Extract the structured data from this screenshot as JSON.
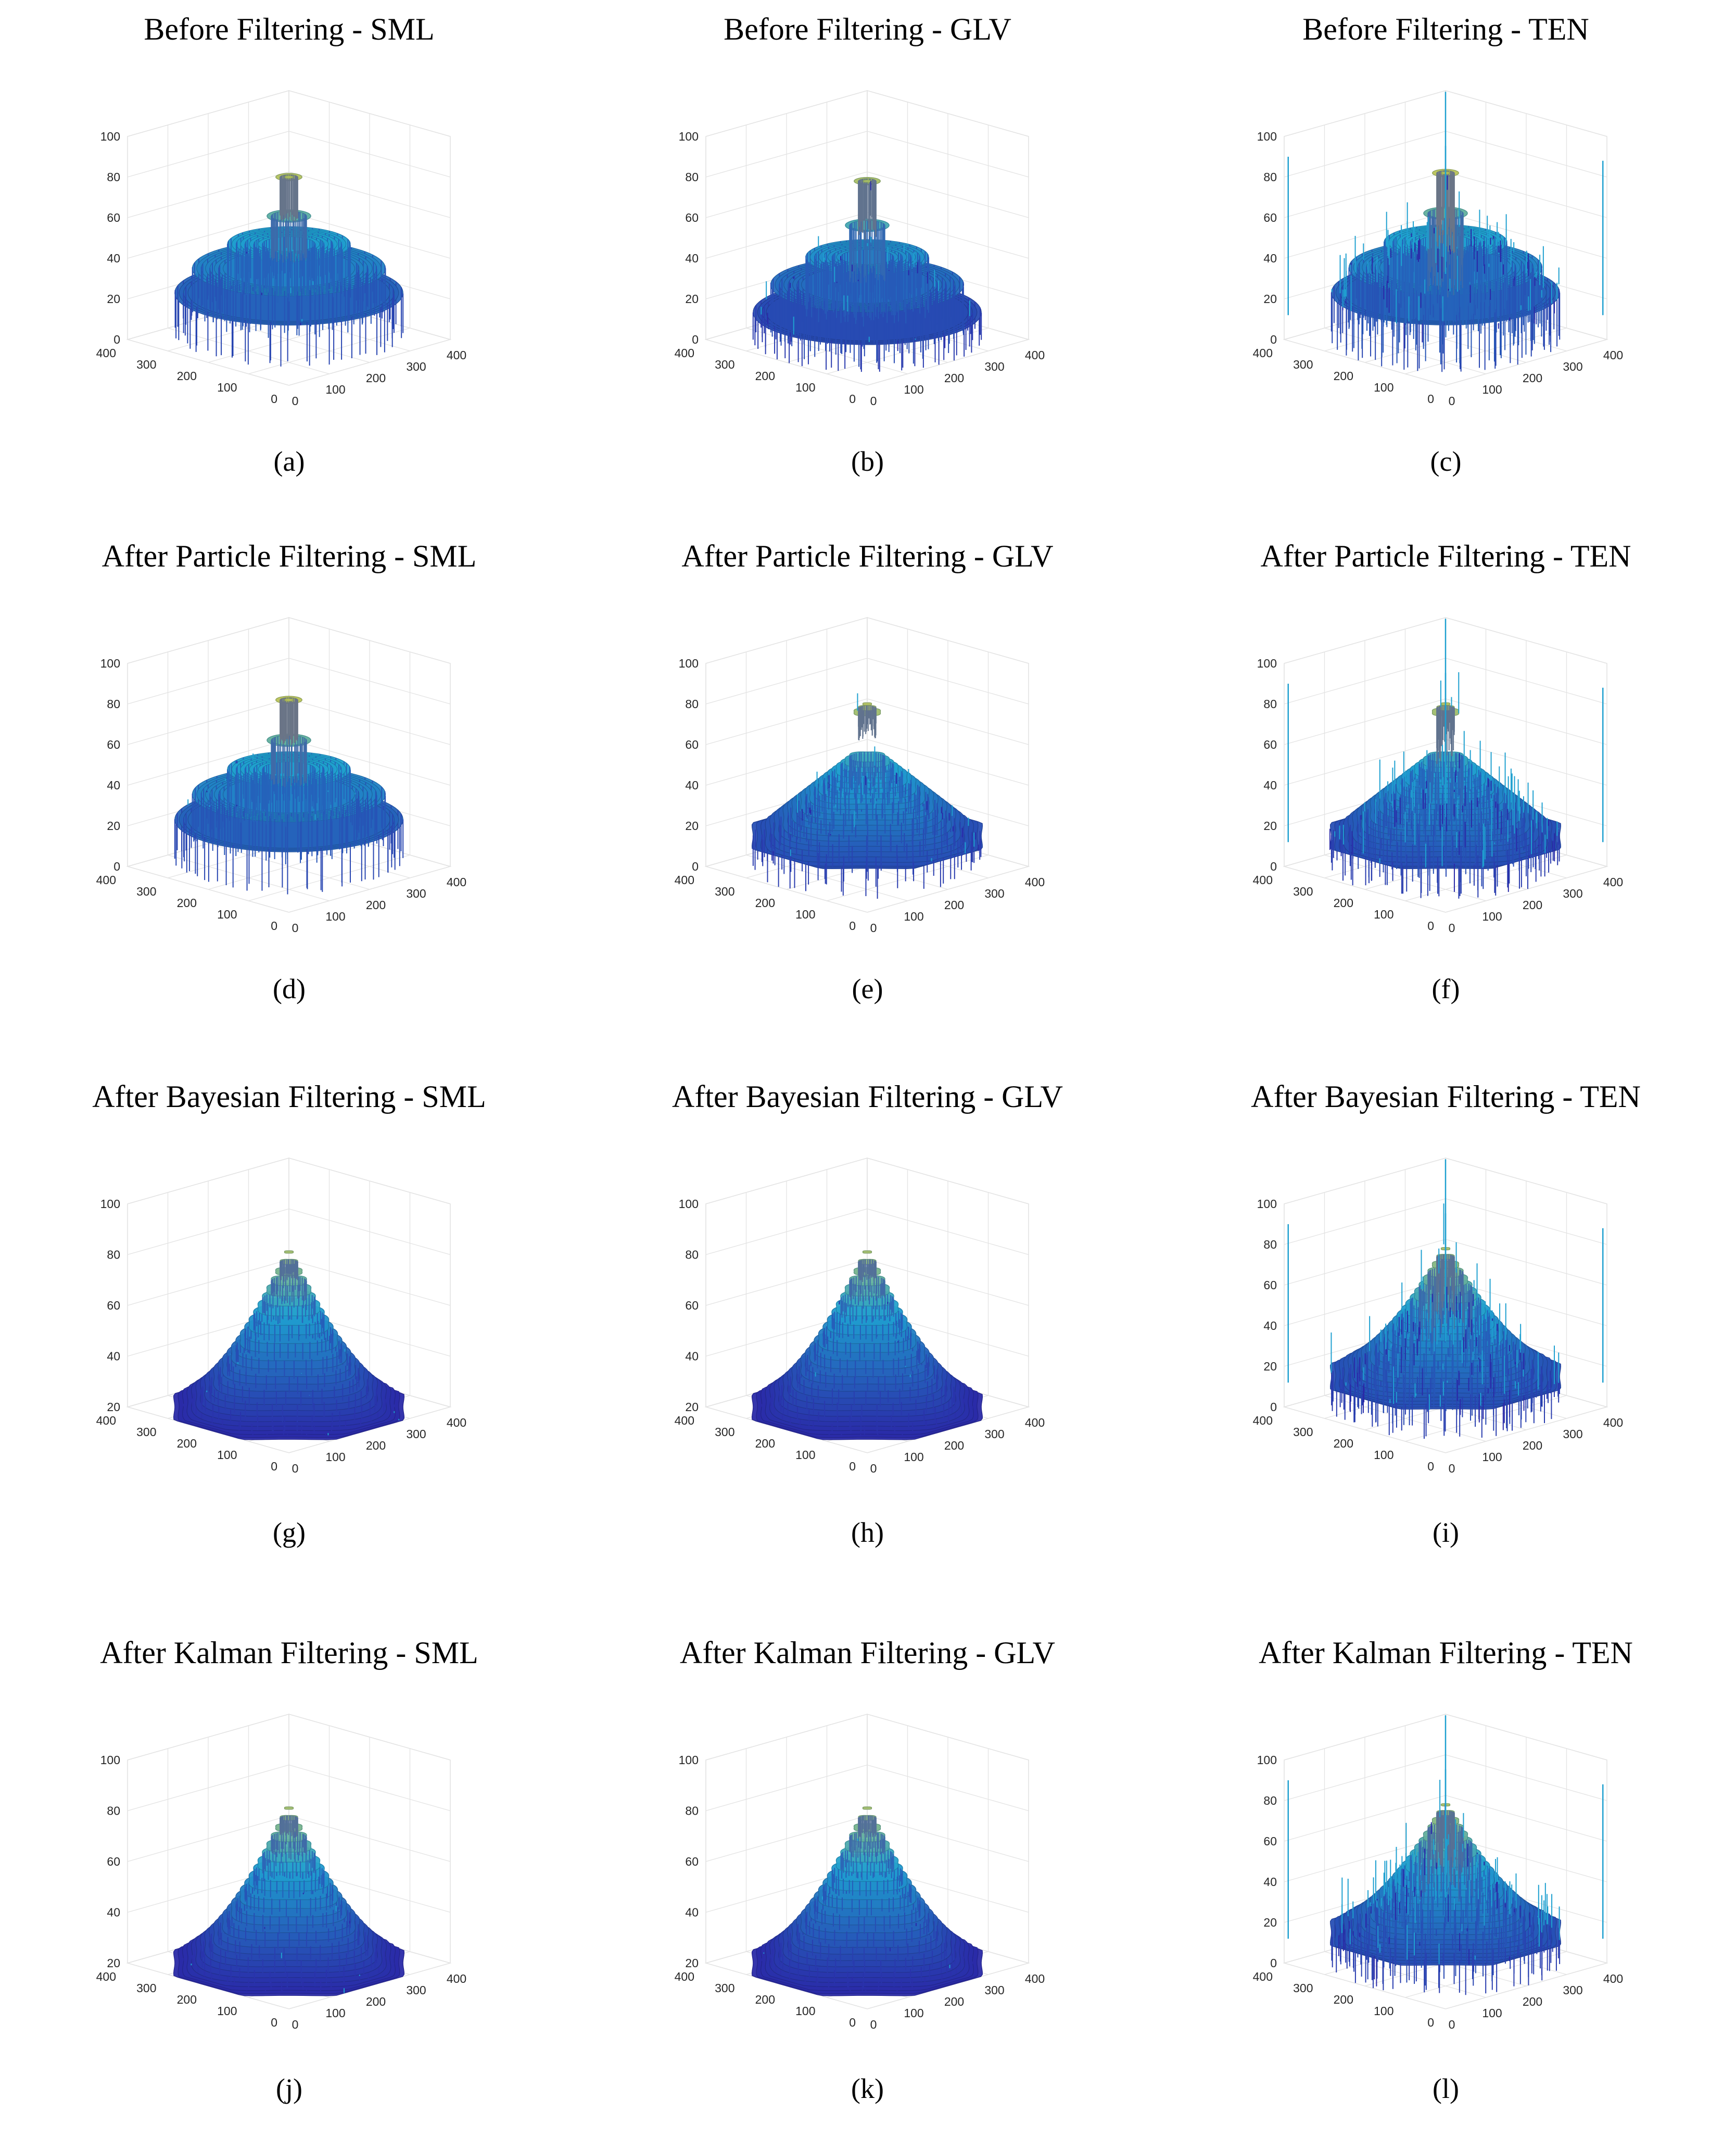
{
  "figure": {
    "colors": {
      "low": "#2a2aa8",
      "mid": "#1fa0d0",
      "high": "#f7d02a",
      "grid": "#e3e3e3",
      "axis": "#262626"
    },
    "panels": [
      {
        "title": "Before Filtering - SML",
        "caption": "(a)"
      },
      {
        "title": "Before Filtering - GLV",
        "caption": "(b)"
      },
      {
        "title": "Before Filtering - TEN",
        "caption": "(c)"
      },
      {
        "title": "After Particle Filtering - SML",
        "caption": "(d)"
      },
      {
        "title": "After Particle Filtering - GLV",
        "caption": "(e)"
      },
      {
        "title": "After Particle Filtering - TEN",
        "caption": "(f)"
      },
      {
        "title": "After Bayesian Filtering - SML",
        "caption": "(g)"
      },
      {
        "title": "After Bayesian Filtering - GLV",
        "caption": "(h)"
      },
      {
        "title": "After Bayesian Filtering - TEN",
        "caption": "(i)"
      },
      {
        "title": "After Kalman Filtering - SML",
        "caption": "(j)"
      },
      {
        "title": "After Kalman Filtering - GLV",
        "caption": "(k)"
      },
      {
        "title": "After Kalman Filtering - TEN",
        "caption": "(l)"
      }
    ]
  },
  "chart_data": [
    {
      "type": "surface3d",
      "title": "Before Filtering - SML",
      "caption": "(a)",
      "shape": "stepped-disc",
      "peak": 80,
      "base": 20,
      "noise": "low",
      "xlim": [
        0,
        400
      ],
      "ylim": [
        0,
        400
      ],
      "zlim": [
        0,
        100
      ],
      "xticks": [
        0,
        100,
        200,
        300,
        400
      ],
      "yticks": [
        0,
        100,
        200,
        300,
        400
      ],
      "zticks": [
        0,
        20,
        40,
        60,
        80,
        100
      ],
      "zticklabels": [
        "0",
        "20",
        "40",
        "60",
        "80",
        "100"
      ],
      "xticklabels": [
        "0",
        "100",
        "200",
        "300",
        "400"
      ],
      "yticklabels": [
        "0",
        "100",
        "200",
        "300",
        "400"
      ]
    },
    {
      "type": "surface3d",
      "title": "Before Filtering - GLV",
      "caption": "(b)",
      "shape": "stepped-disc",
      "peak": 78,
      "base": 10,
      "noise": "medium",
      "xlim": [
        0,
        400
      ],
      "ylim": [
        0,
        400
      ],
      "zlim": [
        0,
        100
      ],
      "xticks": [
        0,
        100,
        200,
        300,
        400
      ],
      "yticks": [
        0,
        100,
        200,
        300,
        400
      ],
      "zticks": [
        0,
        20,
        40,
        60,
        80,
        100
      ],
      "zticklabels": [
        "0",
        "20",
        "40",
        "60",
        "80",
        "100"
      ],
      "xticklabels": [
        "0",
        "100",
        "200",
        "300",
        "400"
      ],
      "yticklabels": [
        "0",
        "100",
        "200",
        "300",
        "400"
      ]
    },
    {
      "type": "surface3d",
      "title": "Before Filtering - TEN",
      "caption": "(c)",
      "shape": "stepped-disc",
      "peak": 82,
      "base": 20,
      "noise": "high",
      "xlim": [
        0,
        400
      ],
      "ylim": [
        0,
        400
      ],
      "zlim": [
        0,
        100
      ],
      "xticks": [
        0,
        100,
        200,
        300,
        400
      ],
      "yticks": [
        0,
        100,
        200,
        300,
        400
      ],
      "zticks": [
        0,
        20,
        40,
        60,
        80,
        100
      ],
      "zticklabels": [
        "0",
        "20",
        "40",
        "60",
        "80",
        "100"
      ],
      "xticklabels": [
        "0",
        "100",
        "200",
        "300",
        "400"
      ],
      "yticklabels": [
        "0",
        "100",
        "200",
        "300",
        "400"
      ]
    },
    {
      "type": "surface3d",
      "title": "After Particle Filtering - SML",
      "caption": "(d)",
      "shape": "stepped-disc",
      "peak": 82,
      "base": 20,
      "noise": "low",
      "xlim": [
        0,
        400
      ],
      "ylim": [
        0,
        400
      ],
      "zlim": [
        0,
        100
      ],
      "xticks": [
        0,
        100,
        200,
        300,
        400
      ],
      "yticks": [
        0,
        100,
        200,
        300,
        400
      ],
      "zticks": [
        0,
        20,
        40,
        60,
        80,
        100
      ],
      "zticklabels": [
        "0",
        "20",
        "40",
        "60",
        "80",
        "100"
      ],
      "xticklabels": [
        "0",
        "100",
        "200",
        "300",
        "400"
      ],
      "yticklabels": [
        "0",
        "100",
        "200",
        "300",
        "400"
      ]
    },
    {
      "type": "surface3d",
      "title": "After Particle Filtering - GLV",
      "caption": "(e)",
      "shape": "dome",
      "peak": 82,
      "base": 15,
      "noise": "medium",
      "xlim": [
        0,
        400
      ],
      "ylim": [
        0,
        400
      ],
      "zlim": [
        0,
        100
      ],
      "xticks": [
        0,
        100,
        200,
        300,
        400
      ],
      "yticks": [
        0,
        100,
        200,
        300,
        400
      ],
      "zticks": [
        0,
        20,
        40,
        60,
        80,
        100
      ],
      "zticklabels": [
        "0",
        "20",
        "40",
        "60",
        "80",
        "100"
      ],
      "xticklabels": [
        "0",
        "100",
        "200",
        "300",
        "400"
      ],
      "yticklabels": [
        "0",
        "100",
        "200",
        "300",
        "400"
      ]
    },
    {
      "type": "surface3d",
      "title": "After Particle Filtering - TEN",
      "caption": "(f)",
      "shape": "dome",
      "peak": 82,
      "base": 15,
      "noise": "high",
      "xlim": [
        0,
        400
      ],
      "ylim": [
        0,
        400
      ],
      "zlim": [
        0,
        100
      ],
      "xticks": [
        0,
        100,
        200,
        300,
        400
      ],
      "yticks": [
        0,
        100,
        200,
        300,
        400
      ],
      "zticks": [
        0,
        20,
        40,
        60,
        80,
        100
      ],
      "zticklabels": [
        "0",
        "20",
        "40",
        "60",
        "80",
        "100"
      ],
      "xticklabels": [
        "0",
        "100",
        "200",
        "300",
        "400"
      ],
      "yticklabels": [
        "0",
        "100",
        "200",
        "300",
        "400"
      ]
    },
    {
      "type": "surface3d",
      "title": "After Bayesian Filtering - SML",
      "caption": "(g)",
      "shape": "cone",
      "peak": 85,
      "base": 20,
      "noise": "low",
      "xlim": [
        0,
        400
      ],
      "ylim": [
        0,
        400
      ],
      "zlim": [
        20,
        100
      ],
      "xticks": [
        0,
        100,
        200,
        300,
        400
      ],
      "yticks": [
        0,
        100,
        200,
        300,
        400
      ],
      "zticks": [
        20,
        40,
        60,
        80,
        100
      ],
      "zticklabels": [
        "20",
        "40",
        "60",
        "80",
        "100"
      ],
      "xticklabels": [
        "0",
        "100",
        "200",
        "300",
        "400"
      ],
      "yticklabels": [
        "0",
        "100",
        "200",
        "300",
        "400"
      ]
    },
    {
      "type": "surface3d",
      "title": "After Bayesian Filtering - GLV",
      "caption": "(h)",
      "shape": "cone",
      "peak": 85,
      "base": 20,
      "noise": "low",
      "xlim": [
        0,
        400
      ],
      "ylim": [
        0,
        400
      ],
      "zlim": [
        20,
        100
      ],
      "xticks": [
        0,
        100,
        200,
        300,
        400
      ],
      "yticks": [
        0,
        100,
        200,
        300,
        400
      ],
      "zticks": [
        20,
        40,
        60,
        80,
        100
      ],
      "zticklabels": [
        "20",
        "40",
        "60",
        "80",
        "100"
      ],
      "xticklabels": [
        "0",
        "100",
        "200",
        "300",
        "400"
      ],
      "yticklabels": [
        "0",
        "100",
        "200",
        "300",
        "400"
      ]
    },
    {
      "type": "surface3d",
      "title": "After Bayesian Filtering - TEN",
      "caption": "(i)",
      "shape": "cone",
      "peak": 82,
      "base": 15,
      "noise": "high",
      "xlim": [
        0,
        400
      ],
      "ylim": [
        0,
        400
      ],
      "zlim": [
        0,
        100
      ],
      "xticks": [
        0,
        100,
        200,
        300,
        400
      ],
      "yticks": [
        0,
        100,
        200,
        300,
        400
      ],
      "zticks": [
        0,
        20,
        40,
        60,
        80,
        100
      ],
      "zticklabels": [
        "0",
        "20",
        "40",
        "60",
        "80",
        "100"
      ],
      "xticklabels": [
        "0",
        "100",
        "200",
        "300",
        "400"
      ],
      "yticklabels": [
        "0",
        "100",
        "200",
        "300",
        "400"
      ]
    },
    {
      "type": "surface3d",
      "title": "After Kalman Filtering - SML",
      "caption": "(j)",
      "shape": "cone",
      "peak": 85,
      "base": 20,
      "noise": "low",
      "xlim": [
        0,
        400
      ],
      "ylim": [
        0,
        400
      ],
      "zlim": [
        20,
        100
      ],
      "xticks": [
        0,
        100,
        200,
        300,
        400
      ],
      "yticks": [
        0,
        100,
        200,
        300,
        400
      ],
      "zticks": [
        20,
        40,
        60,
        80,
        100
      ],
      "zticklabels": [
        "20",
        "40",
        "60",
        "80",
        "100"
      ],
      "xticklabels": [
        "0",
        "100",
        "200",
        "300",
        "400"
      ],
      "yticklabels": [
        "0",
        "100",
        "200",
        "300",
        "400"
      ]
    },
    {
      "type": "surface3d",
      "title": "After Kalman Filtering - GLV",
      "caption": "(k)",
      "shape": "cone",
      "peak": 85,
      "base": 20,
      "noise": "low",
      "xlim": [
        0,
        400
      ],
      "ylim": [
        0,
        400
      ],
      "zlim": [
        20,
        100
      ],
      "xticks": [
        0,
        100,
        200,
        300,
        400
      ],
      "yticks": [
        0,
        100,
        200,
        300,
        400
      ],
      "zticks": [
        20,
        40,
        60,
        80,
        100
      ],
      "zticklabels": [
        "20",
        "40",
        "60",
        "80",
        "100"
      ],
      "xticklabels": [
        "0",
        "100",
        "200",
        "300",
        "400"
      ],
      "yticklabels": [
        "0",
        "100",
        "200",
        "300",
        "400"
      ]
    },
    {
      "type": "surface3d",
      "title": "After Kalman Filtering - TEN",
      "caption": "(l)",
      "shape": "cone",
      "peak": 82,
      "base": 15,
      "noise": "high",
      "xlim": [
        0,
        400
      ],
      "ylim": [
        0,
        400
      ],
      "zlim": [
        0,
        100
      ],
      "xticks": [
        0,
        100,
        200,
        300,
        400
      ],
      "yticks": [
        0,
        100,
        200,
        300,
        400
      ],
      "zticks": [
        0,
        20,
        40,
        60,
        80,
        100
      ],
      "zticklabels": [
        "0",
        "20",
        "40",
        "60",
        "80",
        "100"
      ],
      "xticklabels": [
        "0",
        "100",
        "200",
        "300",
        "400"
      ],
      "yticklabels": [
        "0",
        "100",
        "200",
        "300",
        "400"
      ]
    }
  ]
}
